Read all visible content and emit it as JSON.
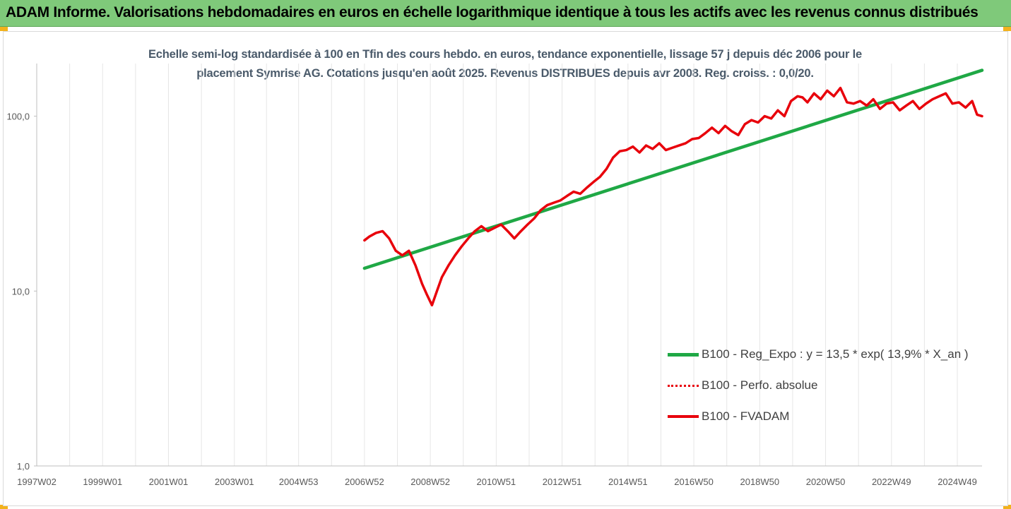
{
  "banner": {
    "title": "ADAM Informe. Valorisations hebdomadaires en euros en échelle logarithmique identique à tous les actifs avec les revenus connus distribués"
  },
  "colors": {
    "banner_bg": "#7fc97a",
    "trend": "#1fa845",
    "fvadam": "#e8000b",
    "perfo": "#e8000b",
    "axis_text": "#595959",
    "grid": "#e6e6e6"
  },
  "chart_data": {
    "type": "line",
    "title_line1": "Echelle semi-log standardisée à 100 en Tfin des cours hebdo. en euros, tendance exponentielle, lissage 57 j depuis déc 2006 pour le",
    "title_line2": "placement Symrise  AG. Cotations jusqu'en août 2025. Revenus DISTRIBUES depuis avr 2008. Reg. croiss. : 0,0/20.",
    "y_scale": "log",
    "ylim": [
      1,
      200
    ],
    "y_ticks": [
      1,
      10,
      100
    ],
    "y_tick_labels": [
      "1,0",
      "10,0",
      "100,0"
    ],
    "xlim": [
      1997.0,
      2025.7
    ],
    "x_tick_positions": [
      1997.0,
      1999.0,
      2001.0,
      2003.0,
      2004.95,
      2006.95,
      2008.95,
      2010.95,
      2012.95,
      2014.95,
      2016.95,
      2018.95,
      2020.95,
      2022.95,
      2024.95
    ],
    "x_tick_labels": [
      "1997W02",
      "1999W01",
      "2001W01",
      "2003W01",
      "2004W53",
      "2006W52",
      "2008W52",
      "2010W51",
      "2012W51",
      "2014W51",
      "2016W50",
      "2018W50",
      "2020W50",
      "2022W49",
      "2024W49"
    ],
    "grid": "vertical",
    "legend_position": "bottom-right",
    "series": [
      {
        "name": "B100 - Reg_Expo : y = 13,5 * exp( 13,9% *  X_an )",
        "style": "solid-green",
        "x": [
          2006.95,
          2025.7
        ],
        "y": [
          13.5,
          183
        ]
      },
      {
        "name": "B100 - Perfo. absolue",
        "style": "dotted-red",
        "x": [],
        "y": []
      },
      {
        "name": "B100 - FVADAM",
        "style": "solid-red",
        "x": [
          2006.95,
          2007.1,
          2007.3,
          2007.5,
          2007.7,
          2007.9,
          2008.1,
          2008.3,
          2008.5,
          2008.7,
          2008.85,
          2009.0,
          2009.15,
          2009.3,
          2009.5,
          2009.7,
          2009.9,
          2010.1,
          2010.3,
          2010.5,
          2010.7,
          2010.9,
          2011.1,
          2011.3,
          2011.5,
          2011.7,
          2011.9,
          2012.1,
          2012.3,
          2012.5,
          2012.7,
          2012.9,
          2013.1,
          2013.3,
          2013.5,
          2013.7,
          2013.9,
          2014.1,
          2014.3,
          2014.5,
          2014.7,
          2014.9,
          2015.1,
          2015.3,
          2015.5,
          2015.7,
          2015.9,
          2016.1,
          2016.3,
          2016.5,
          2016.7,
          2016.9,
          2017.1,
          2017.3,
          2017.5,
          2017.7,
          2017.9,
          2018.1,
          2018.3,
          2018.5,
          2018.7,
          2018.9,
          2019.1,
          2019.3,
          2019.5,
          2019.7,
          2019.9,
          2020.1,
          2020.25,
          2020.4,
          2020.6,
          2020.8,
          2021.0,
          2021.2,
          2021.4,
          2021.6,
          2021.8,
          2022.0,
          2022.2,
          2022.4,
          2022.6,
          2022.8,
          2023.0,
          2023.2,
          2023.4,
          2023.6,
          2023.8,
          2024.0,
          2024.2,
          2024.4,
          2024.6,
          2024.8,
          2025.0,
          2025.2,
          2025.4,
          2025.55,
          2025.7
        ],
        "y": [
          19.5,
          20.5,
          21.5,
          22,
          20,
          17,
          16,
          17,
          14,
          11,
          9.5,
          8.3,
          10,
          12,
          14,
          16,
          18,
          20,
          22,
          23.5,
          22,
          23,
          24,
          22,
          20,
          22,
          24,
          26,
          29,
          31,
          32,
          33,
          35,
          37,
          36,
          39,
          42,
          45,
          50,
          58,
          63,
          64,
          67,
          62,
          68,
          65,
          70,
          64,
          66,
          68,
          70,
          74,
          75,
          80,
          86,
          80,
          88,
          82,
          78,
          90,
          95,
          92,
          100,
          97,
          108,
          100,
          122,
          130,
          128,
          120,
          135,
          125,
          140,
          130,
          145,
          120,
          118,
          122,
          115,
          125,
          110,
          118,
          120,
          108,
          115,
          122,
          110,
          118,
          125,
          130,
          135,
          118,
          120,
          112,
          122,
          102,
          100
        ]
      }
    ]
  }
}
